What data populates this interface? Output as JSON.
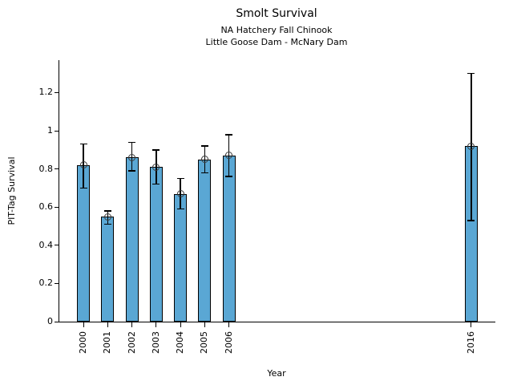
{
  "chart_data": {
    "type": "bar",
    "title": "Smolt Survival",
    "subtitle_line1": "NA Hatchery Fall Chinook",
    "subtitle_line2": "Little Goose Dam - McNary Dam",
    "xlabel": "Year",
    "ylabel": "PIT-Tag Survival",
    "categories": [
      2000,
      2001,
      2002,
      2003,
      2004,
      2005,
      2006,
      2016
    ],
    "xtick_labels": [
      "2000",
      "2001",
      "2002",
      "2003",
      "2004",
      "2005",
      "2006",
      "2016"
    ],
    "values": [
      0.82,
      0.55,
      0.86,
      0.81,
      0.67,
      0.85,
      0.87,
      0.92
    ],
    "error_low": [
      0.7,
      0.51,
      0.79,
      0.72,
      0.59,
      0.78,
      0.76,
      0.53
    ],
    "error_high": [
      0.93,
      0.58,
      0.94,
      0.9,
      0.75,
      0.92,
      0.98,
      1.3
    ],
    "yticks": [
      0,
      0.2,
      0.4,
      0.6,
      0.8,
      1,
      1.2
    ],
    "ytick_labels": [
      "0",
      "0.2",
      "0.4",
      "0.6",
      "0.8",
      "1",
      "1.2"
    ],
    "xlim": [
      1999,
      2017
    ],
    "ylim": [
      0,
      1.37
    ],
    "bar_color": "#5AA7D4",
    "bar_edge_color": "#000000",
    "error_bar_color": "#000000",
    "marker": "open-circle",
    "grid": false
  }
}
